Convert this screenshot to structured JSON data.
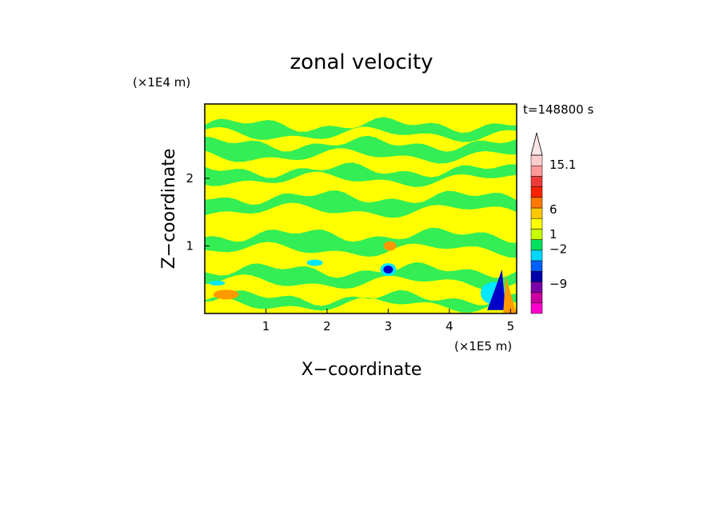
{
  "chart_data": {
    "type": "heatmap",
    "title": "zonal velocity",
    "xlabel": "X−coordinate",
    "ylabel": "Z−coordinate",
    "x_unit": "(×1E5 m)",
    "y_unit": "(×1E4 m)",
    "time_label": "t=148800 s",
    "xlim": [
      0,
      5.1
    ],
    "ylim": [
      0,
      3.1
    ],
    "x_ticks": [
      "1",
      "2",
      "3",
      "4",
      "5"
    ],
    "x_tick_values": [
      1,
      2,
      3,
      4,
      5
    ],
    "y_ticks": [
      "1",
      "2"
    ],
    "y_tick_values": [
      1,
      2
    ],
    "grid": false,
    "colorbar": {
      "labels": [
        "15.1",
        "6",
        "1",
        "−2",
        "−9"
      ],
      "label_values": [
        15.1,
        6,
        1,
        -2,
        -9
      ],
      "colors": [
        "#ff00cc",
        "#cc00a0",
        "#7a00a8",
        "#0000a8",
        "#0060ff",
        "#00d6ff",
        "#00e060",
        "#c8ff00",
        "#ffff00",
        "#ffc800",
        "#ff7800",
        "#ff2200",
        "#f03a3a",
        "#ff9999",
        "#ffcccc"
      ],
      "extend_top": true
    },
    "fields": {
      "background": "#ffff00",
      "bands": "#33ee55",
      "negative_weak": "#00e8ff",
      "negative_strong": "#0000c8",
      "positive": "#ff9900"
    },
    "bands_x_fraction_note": "green bands mark weak negative zonal velocity, yellow weak positive",
    "band_layers": [
      {
        "z": 2.72,
        "thick": 0.14
      },
      {
        "z": 2.42,
        "thick": 0.18
      },
      {
        "z": 2.05,
        "thick": 0.14
      },
      {
        "z": 1.62,
        "thick": 0.2
      },
      {
        "z": 1.05,
        "thick": 0.22
      },
      {
        "z": 0.55,
        "thick": 0.18
      },
      {
        "z": 0.18,
        "thick": 0.1
      }
    ],
    "features": [
      {
        "name": "blue cell",
        "x": 3.0,
        "z": 0.65,
        "value": -8
      },
      {
        "name": "orange cell",
        "x": 3.03,
        "z": 1.0,
        "value": 3
      },
      {
        "name": "mountain jet",
        "x": 4.8,
        "z": 0.3,
        "value": -12
      }
    ]
  }
}
